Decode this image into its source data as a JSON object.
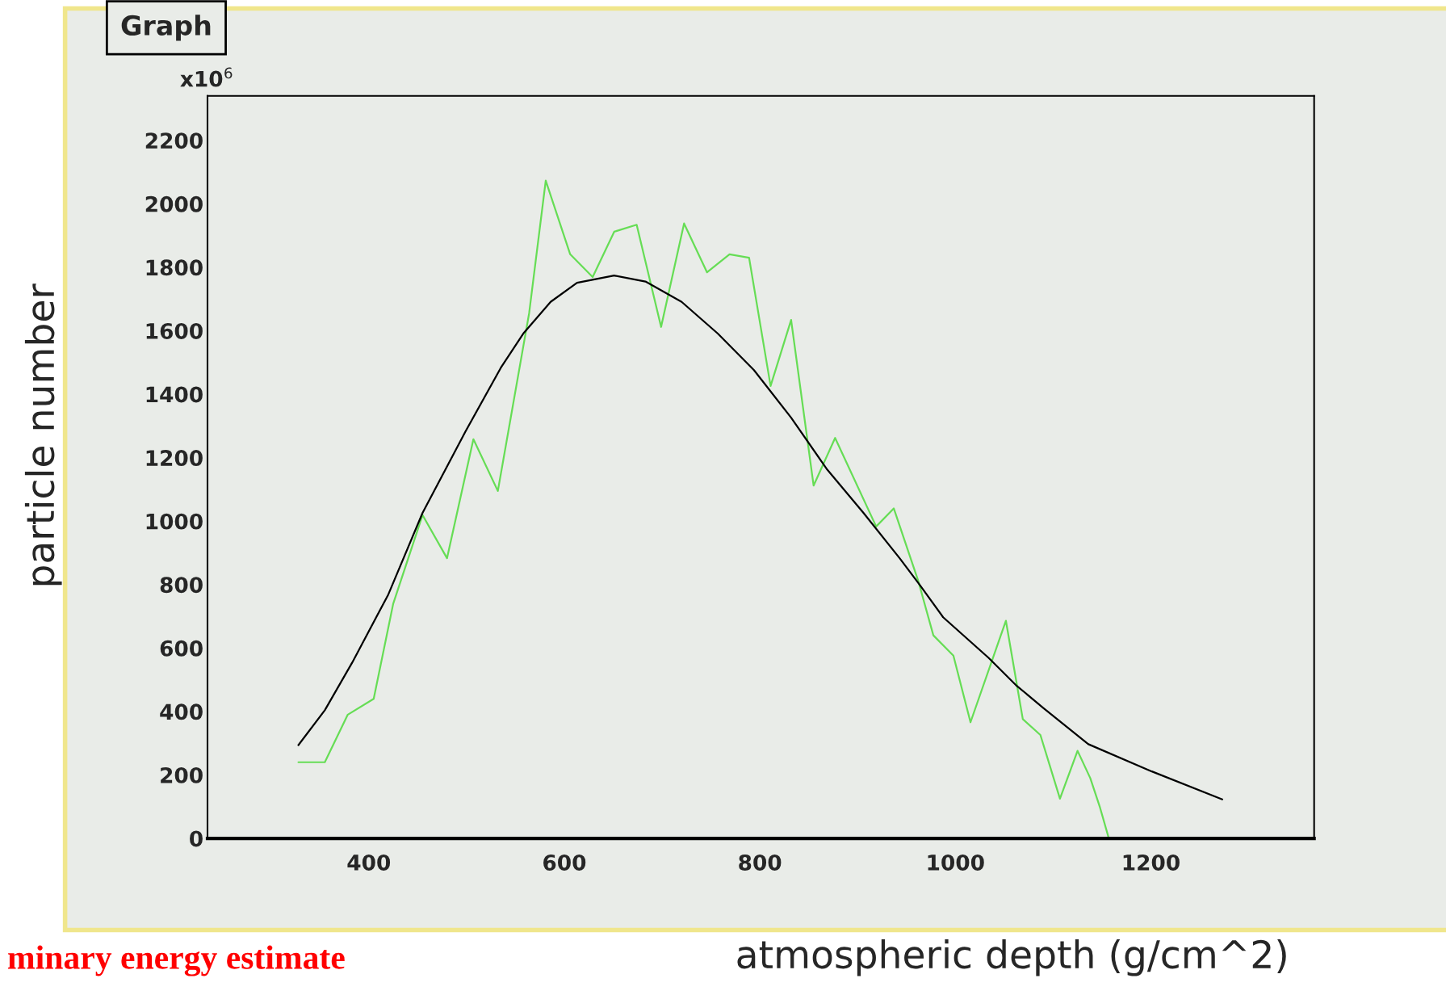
{
  "chart_data": {
    "type": "line",
    "title": "Graph",
    "xlabel": "atmospheric depth (g/cm^2)",
    "ylabel": "particle number",
    "annotations": [
      "x10$^{6}$",
      "minary energy estimate"
    ],
    "series": [
      {
        "color": "#66dd55",
        "x": [
          328,
          355,
          378.5,
          405,
          425,
          455,
          480,
          507,
          532,
          564,
          581,
          606,
          629,
          651,
          674,
          699,
          722.5,
          746,
          769,
          789,
          811,
          832,
          855,
          877,
          919,
          937,
          962,
          977.5,
          998,
          1015.5,
          1051.7,
          1069,
          1087,
          1107,
          1125,
          1138,
          1148,
          1157
        ],
        "values": [
          240,
          240,
          390,
          440,
          740,
          1019,
          883,
          1258,
          1095,
          1655,
          2073,
          1841,
          1769,
          1912,
          1934,
          1612,
          1938,
          1784,
          1841,
          1830,
          1426,
          1634,
          1112,
          1262,
          983,
          1040,
          812,
          640,
          576,
          366,
          686,
          376,
          326,
          125,
          276,
          190,
          97,
          0
        ]
      },
      {
        "color": "#000000",
        "x": [
          328,
          355,
          383,
          420,
          455,
          499,
          535,
          558,
          586,
          613,
          651,
          683,
          720,
          757,
          794,
          832,
          869,
          906,
          943,
          964,
          987.5,
          1034,
          1062,
          1090,
          1136,
          1201,
          1273
        ],
        "values": [
          294,
          404,
          554,
          769,
          1026,
          1283,
          1483,
          1591,
          1691,
          1751,
          1774,
          1755,
          1691,
          1591,
          1476,
          1326,
          1162,
          1026,
          883,
          797,
          697,
          569,
          483,
          411,
          297,
          211,
          123
        ]
      }
    ],
    "xlim": [
      235,
      1367
    ],
    "ylim": [
      0,
      2340
    ],
    "xticks": [
      400,
      600,
      800,
      1000,
      1200
    ],
    "yticks": [
      0,
      200,
      400,
      600,
      800,
      1000,
      1200,
      1400,
      1600,
      1800,
      2000,
      2200
    ],
    "grid": false,
    "marker": "none",
    "line_style": "solid"
  }
}
